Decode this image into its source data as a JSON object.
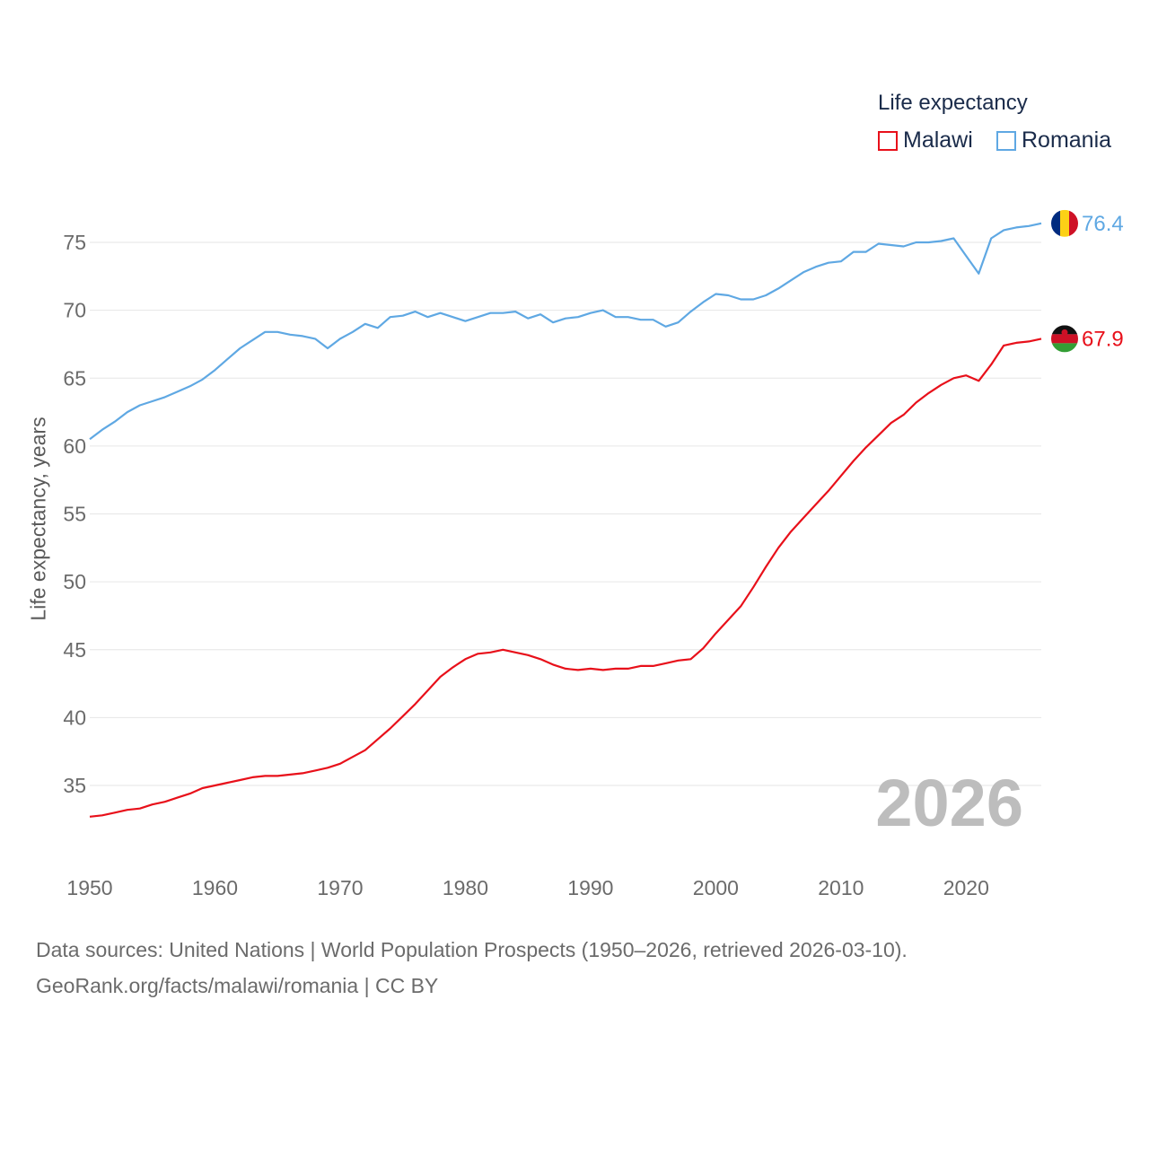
{
  "chart_data": {
    "type": "line",
    "title": "Life expectancy",
    "xlabel": "",
    "ylabel": "Life expectancy, years",
    "xlim": [
      1950,
      2026
    ],
    "ylim": [
      31,
      78
    ],
    "yticks": [
      35,
      40,
      45,
      50,
      55,
      60,
      65,
      70,
      75
    ],
    "xticks": [
      1950,
      1960,
      1970,
      1980,
      1990,
      2000,
      2010,
      2020
    ],
    "current_year_label": "2026",
    "x": [
      1950,
      1951,
      1952,
      1953,
      1954,
      1955,
      1956,
      1957,
      1958,
      1959,
      1960,
      1961,
      1962,
      1963,
      1964,
      1965,
      1966,
      1967,
      1968,
      1969,
      1970,
      1971,
      1972,
      1973,
      1974,
      1975,
      1976,
      1977,
      1978,
      1979,
      1980,
      1981,
      1982,
      1983,
      1984,
      1985,
      1986,
      1987,
      1988,
      1989,
      1990,
      1991,
      1992,
      1993,
      1994,
      1995,
      1996,
      1997,
      1998,
      1999,
      2000,
      2001,
      2002,
      2003,
      2004,
      2005,
      2006,
      2007,
      2008,
      2009,
      2010,
      2011,
      2012,
      2013,
      2014,
      2015,
      2016,
      2017,
      2018,
      2019,
      2020,
      2021,
      2022,
      2023,
      2024,
      2025,
      2026
    ],
    "series": [
      {
        "name": "Malawi",
        "color": "#e8101a",
        "end_label": "67.9",
        "values": [
          32.7,
          32.8,
          33.0,
          33.2,
          33.3,
          33.6,
          33.8,
          34.1,
          34.4,
          34.8,
          35.0,
          35.2,
          35.4,
          35.6,
          35.7,
          35.7,
          35.8,
          35.9,
          36.1,
          36.3,
          36.6,
          37.1,
          37.6,
          38.4,
          39.2,
          40.1,
          41.0,
          42.0,
          43.0,
          43.7,
          44.3,
          44.7,
          44.8,
          45.0,
          44.8,
          44.6,
          44.3,
          43.9,
          43.6,
          43.5,
          43.6,
          43.5,
          43.6,
          43.6,
          43.8,
          43.8,
          44.0,
          44.2,
          44.3,
          45.1,
          46.2,
          47.2,
          48.2,
          49.6,
          51.1,
          52.5,
          53.7,
          54.7,
          55.7,
          56.7,
          57.8,
          58.9,
          59.9,
          60.8,
          61.7,
          62.3,
          63.2,
          63.9,
          64.5,
          65.0,
          65.2,
          64.8,
          66.0,
          67.4,
          67.6,
          67.7,
          67.9
        ]
      },
      {
        "name": "Romania",
        "color": "#5fa8e3",
        "end_label": "76.4",
        "values": [
          60.5,
          61.2,
          61.8,
          62.5,
          63.0,
          63.3,
          63.6,
          64.0,
          64.4,
          64.9,
          65.6,
          66.4,
          67.2,
          67.8,
          68.4,
          68.4,
          68.2,
          68.1,
          67.9,
          67.2,
          67.9,
          68.4,
          69.0,
          68.7,
          69.5,
          69.6,
          69.9,
          69.5,
          69.8,
          69.5,
          69.2,
          69.5,
          69.8,
          69.8,
          69.9,
          69.4,
          69.7,
          69.1,
          69.4,
          69.5,
          69.8,
          70.0,
          69.5,
          69.5,
          69.3,
          69.3,
          68.8,
          69.1,
          69.9,
          70.6,
          71.2,
          71.1,
          70.8,
          70.8,
          71.1,
          71.6,
          72.2,
          72.8,
          73.2,
          73.5,
          73.6,
          74.3,
          74.3,
          74.9,
          74.8,
          74.7,
          75.0,
          75.0,
          75.1,
          75.3,
          74.0,
          72.7,
          75.3,
          75.9,
          76.1,
          76.2,
          76.4
        ]
      }
    ]
  },
  "legend": {
    "title": "Life expectancy",
    "items": [
      "Malawi",
      "Romania"
    ]
  },
  "footer": {
    "source_line": "Data sources: United Nations | World Population Prospects (1950–2026, retrieved 2026-03-10).",
    "url_line": "GeoRank.org/facts/malawi/romania | CC BY"
  }
}
